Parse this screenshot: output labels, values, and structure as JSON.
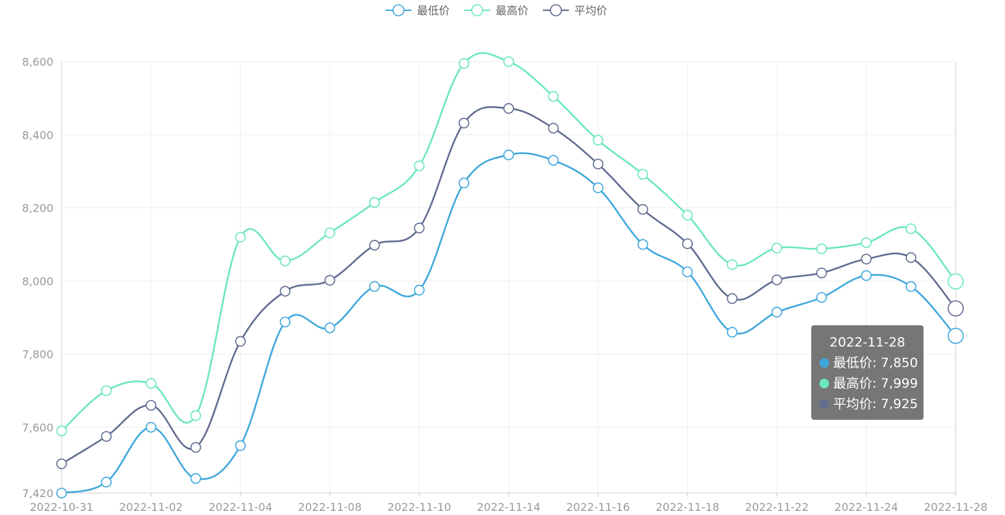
{
  "chart_data": {
    "type": "line",
    "smooth": true,
    "x": [
      "2022-10-31",
      "2022-11-01",
      "2022-11-02",
      "2022-11-03",
      "2022-11-04",
      "2022-11-05",
      "2022-11-08",
      "2022-11-09",
      "2022-11-10",
      "2022-11-11",
      "2022-11-14",
      "2022-11-15",
      "2022-11-16",
      "2022-11-17",
      "2022-11-18",
      "2022-11-21",
      "2022-11-22",
      "2022-11-23",
      "2022-11-24",
      "2022-11-25",
      "2022-11-28"
    ],
    "xtick_labels": [
      "2022-10-31",
      "2022-11-02",
      "2022-11-04",
      "2022-11-08",
      "2022-11-10",
      "2022-11-14",
      "2022-11-16",
      "2022-11-18",
      "2022-11-22",
      "2022-11-24",
      "2022-11-28"
    ],
    "ylim": [
      7420,
      8600
    ],
    "yticks": [
      7420,
      7600,
      7800,
      8000,
      8200,
      8400,
      8600
    ],
    "ytick_labels": [
      "7,420",
      "7,600",
      "7,800",
      "8,000",
      "8,200",
      "8,400",
      "8,600"
    ],
    "grid": true,
    "legend_position": "top-center",
    "series": [
      {
        "name": "最低价",
        "color": "#3fa7dc",
        "values": [
          7420,
          7450,
          7600,
          7460,
          7550,
          7888,
          7872,
          7985,
          7975,
          8268,
          8345,
          8330,
          8255,
          8100,
          8025,
          7860,
          7915,
          7955,
          8015,
          7985,
          7850
        ]
      },
      {
        "name": "最高价",
        "color": "#6be6c1",
        "values": [
          7590,
          7700,
          7720,
          7632,
          8120,
          8055,
          8132,
          8215,
          8315,
          8595,
          8600,
          8505,
          8385,
          8292,
          8180,
          8045,
          8090,
          8088,
          8105,
          8143,
          7999
        ]
      },
      {
        "name": "平均价",
        "color": "#626c91",
        "values": [
          7500,
          7575,
          7660,
          7545,
          7835,
          7972,
          8002,
          8098,
          8145,
          8432,
          8472,
          8418,
          8320,
          8196,
          8102,
          7952,
          8003,
          8022,
          8060,
          8064,
          7925
        ]
      }
    ],
    "tooltip": {
      "title": "2022-11-28",
      "rows": [
        {
          "label": "最低价: 7,850",
          "color": "#3fa7dc"
        },
        {
          "label": "最高价: 7,999",
          "color": "#6be6c1"
        },
        {
          "label": "平均价: 7,925",
          "color": "#626c91"
        }
      ]
    }
  }
}
